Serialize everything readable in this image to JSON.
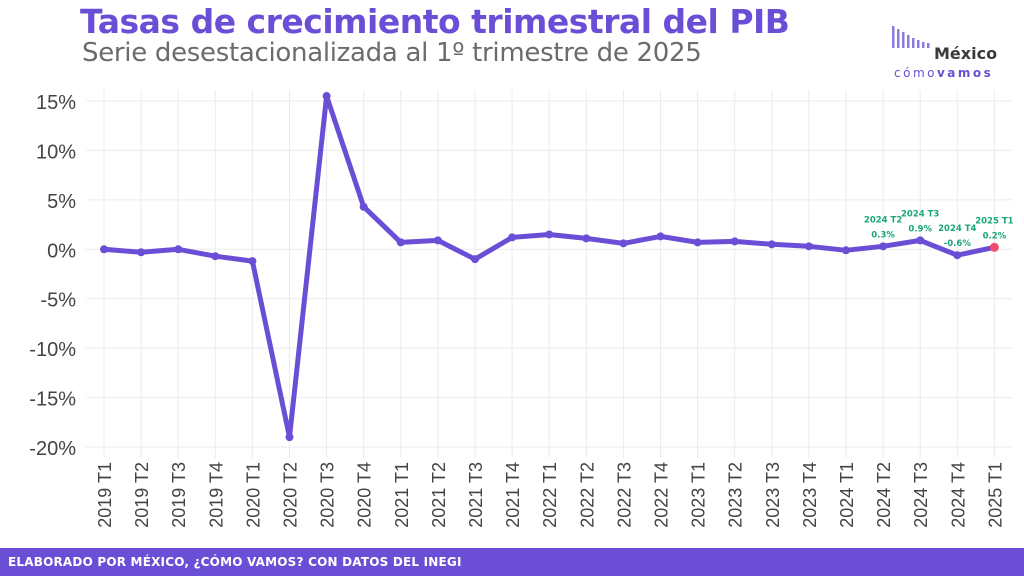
{
  "header": {
    "title": "Tasas de crecimiento trimestral del PIB",
    "subtitle": "Serie desestacionalizada al 1º trimestre de 2025"
  },
  "logo": {
    "name": "México",
    "tagline_a": "cómo",
    "tagline_b": "vamos"
  },
  "footer": {
    "text": "ELABORADO POR MÉXICO, ¿CÓMO VAMOS? CON DATOS DEL INEGI"
  },
  "colors": {
    "accent": "#6a4fd6",
    "annotation": "#1aa67a",
    "highlight": "#ef4b6a"
  },
  "chart_data": {
    "type": "line",
    "title": "Tasas de crecimiento trimestral del PIB",
    "subtitle": "Serie desestacionalizada al 1º trimestre de 2025",
    "xlabel": "",
    "ylabel": "",
    "categories": [
      "2019 T1",
      "2019 T2",
      "2019 T3",
      "2019 T4",
      "2020 T1",
      "2020 T2",
      "2020 T3",
      "2020 T4",
      "2021 T1",
      "2021 T2",
      "2021 T3",
      "2021 T4",
      "2022 T1",
      "2022 T2",
      "2022 T3",
      "2022 T4",
      "2023 T1",
      "2023 T2",
      "2023 T3",
      "2023 T4",
      "2024 T1",
      "2024 T2",
      "2024 T3",
      "2024 T4",
      "2025 T1"
    ],
    "values": [
      0.0,
      -0.3,
      0.0,
      -0.7,
      -1.2,
      -19.0,
      15.5,
      4.3,
      0.7,
      0.9,
      -1.0,
      1.2,
      1.5,
      1.1,
      0.6,
      1.3,
      0.7,
      0.8,
      0.5,
      0.3,
      -0.1,
      0.3,
      0.9,
      -0.6,
      0.2
    ],
    "ylim": [
      -20,
      15
    ],
    "yticks": [
      15,
      10,
      5,
      0,
      -5,
      -10,
      -15,
      -20
    ],
    "ytick_labels": [
      "15%",
      "10%",
      "5%",
      "0%",
      "-5%",
      "-10%",
      "-15%",
      "-20%"
    ],
    "grid": true,
    "annotations": [
      {
        "category": "2024 T2",
        "label": "2024 T2",
        "value_label": "0.3%"
      },
      {
        "category": "2024 T3",
        "label": "2024 T3",
        "value_label": "0.9%"
      },
      {
        "category": "2024 T4",
        "label": "2024 T4",
        "value_label": "-0.6%"
      },
      {
        "category": "2025 T1",
        "label": "2025 T1",
        "value_label": "0.2%"
      }
    ]
  }
}
